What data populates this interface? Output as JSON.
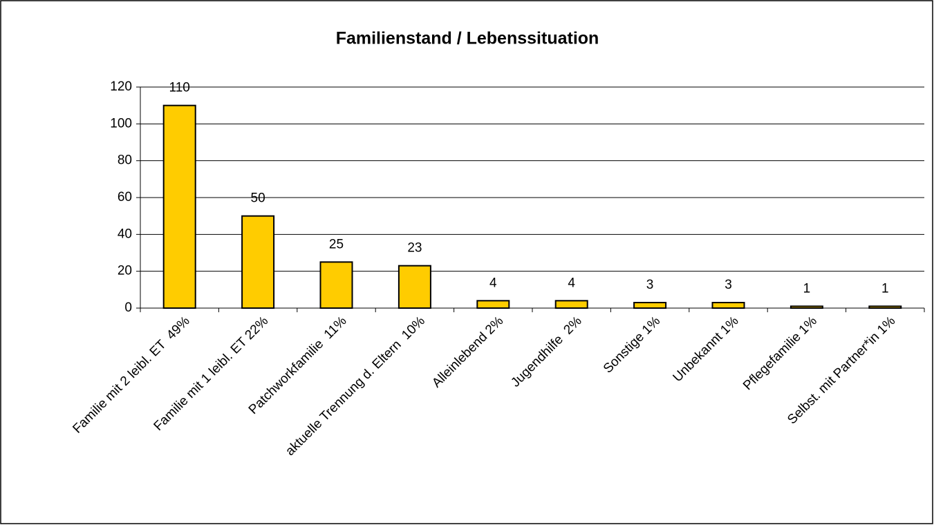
{
  "chart_data": {
    "type": "bar",
    "title": "Familienstand / Lebenssituation",
    "categories": [
      "Familie mit 2 leibl. ET  49%",
      "Familie mit 1 leibl. ET 22%",
      "Patchworkfamilie  11%",
      "aktuelle Trennung d. Eltern  10%",
      "Alleinlebend 2%",
      "Jugendhilfe  2%",
      "Sonstige 1%",
      "Unbekannt 1%",
      "Pflegefamilie 1%",
      "Selbst. mit Partner*in 1%"
    ],
    "values": [
      110,
      50,
      25,
      23,
      4,
      4,
      3,
      3,
      1,
      1
    ],
    "color": "#ffcc00",
    "ylim": [
      0,
      120
    ],
    "yticks": [
      0,
      20,
      40,
      60,
      80,
      100,
      120
    ],
    "grid": true
  }
}
